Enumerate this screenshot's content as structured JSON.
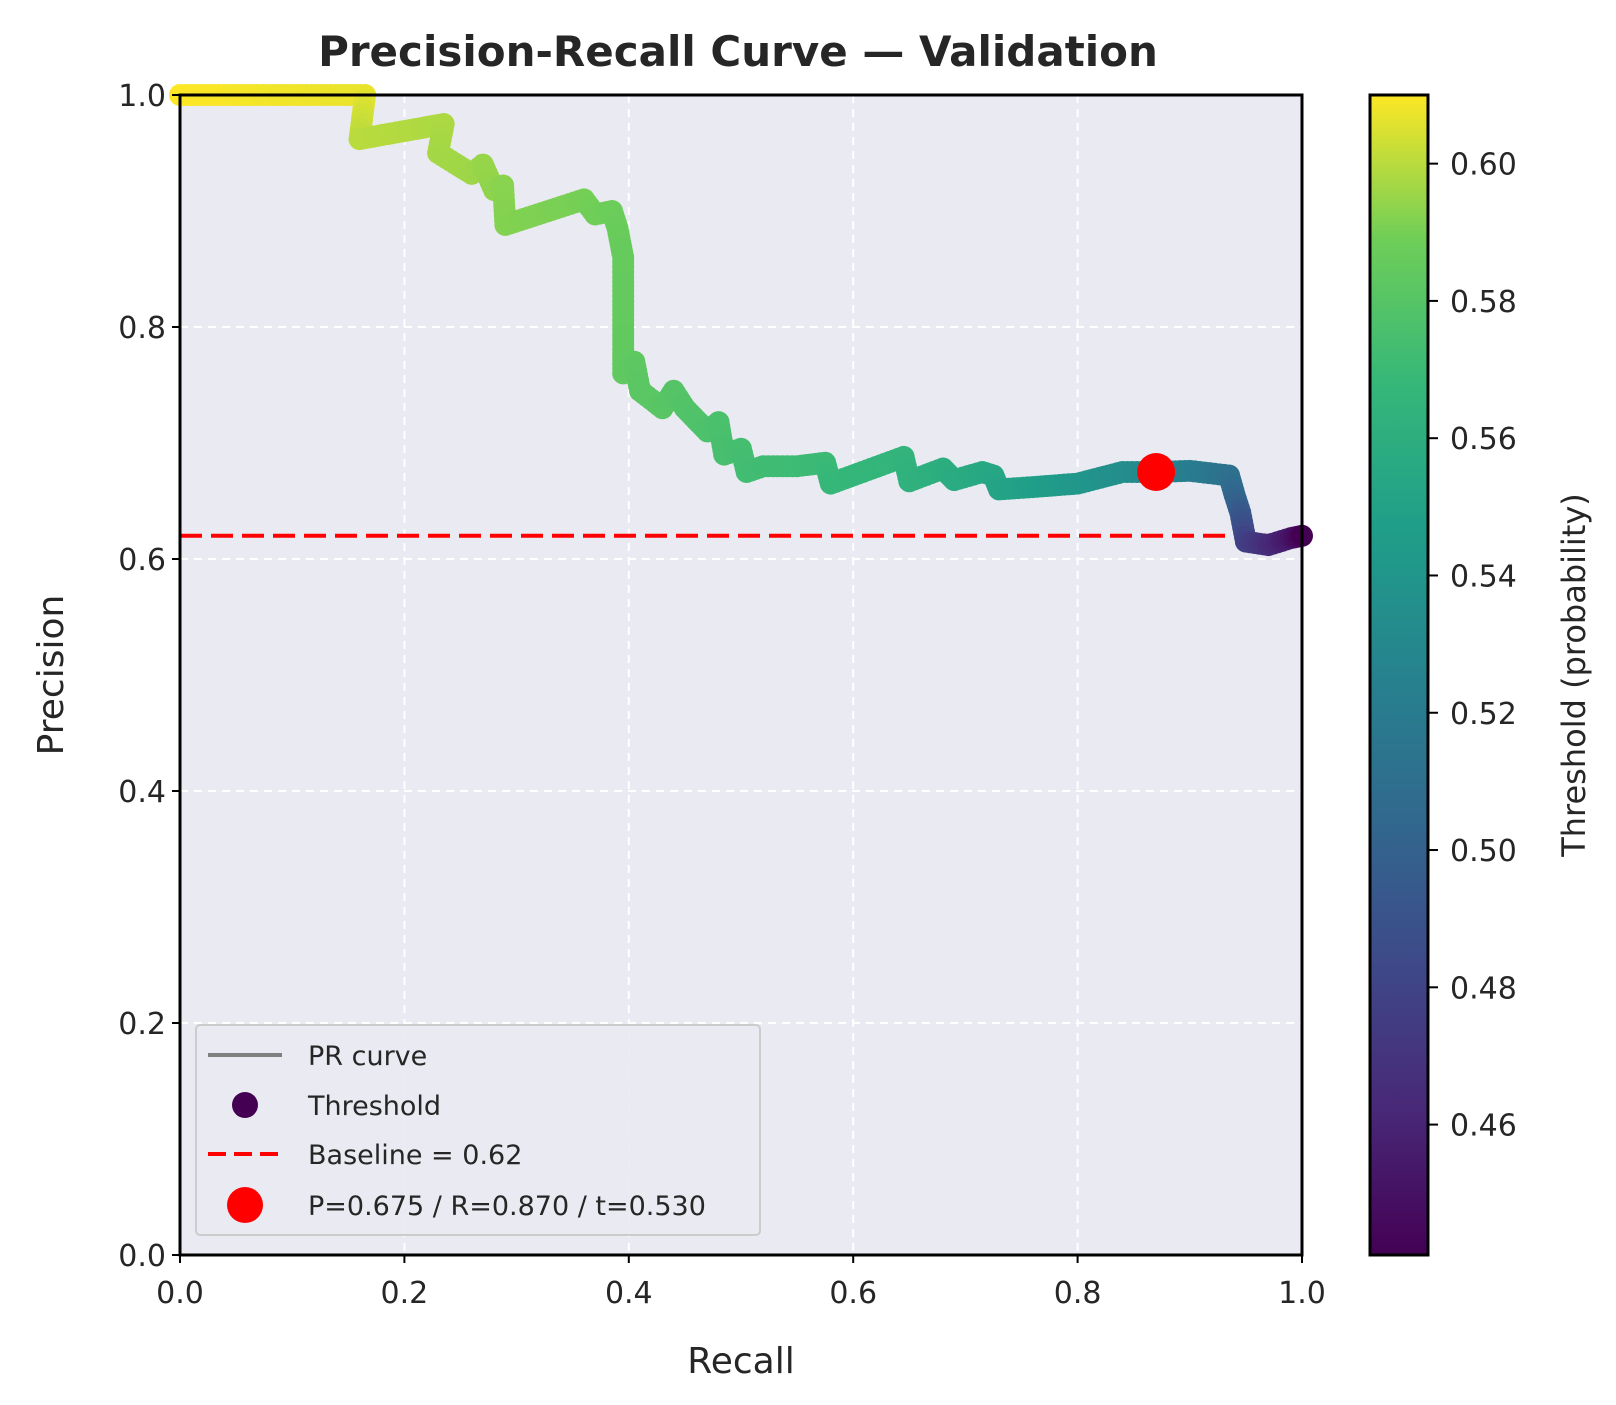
{
  "chart_data": {
    "type": "scatter",
    "title": "Precision-Recall Curve — Validation",
    "xlabel": "Recall",
    "ylabel": "Precision",
    "xlim": [
      0,
      1
    ],
    "ylim": [
      0,
      1
    ],
    "x_ticks": [
      "0.0",
      "0.2",
      "0.4",
      "0.6",
      "0.8",
      "1.0"
    ],
    "y_ticks": [
      "0.0",
      "0.2",
      "0.4",
      "0.6",
      "0.8",
      "1.0"
    ],
    "grid": true,
    "plot_background": "#eaeaf2",
    "legend_position": "lower-left",
    "colorbar": {
      "label": "Threshold (probability)",
      "range": [
        0.441,
        0.61
      ],
      "ticks": [
        "0.46",
        "0.48",
        "0.50",
        "0.52",
        "0.54",
        "0.56",
        "0.58",
        "0.60"
      ],
      "tick_values": [
        0.46,
        0.48,
        0.5,
        0.52,
        0.54,
        0.56,
        0.58,
        0.6
      ],
      "colormap": "viridis"
    },
    "series": [
      {
        "name": "PR curve",
        "kind": "line",
        "color": "#808080",
        "points": [
          [
            0.0,
            1.0
          ],
          [
            0.165,
            1.0
          ],
          [
            0.16,
            0.962
          ],
          [
            0.235,
            0.975
          ],
          [
            0.23,
            0.95
          ],
          [
            0.26,
            0.932
          ],
          [
            0.27,
            0.94
          ],
          [
            0.28,
            0.918
          ],
          [
            0.288,
            0.922
          ],
          [
            0.29,
            0.888
          ],
          [
            0.36,
            0.91
          ],
          [
            0.37,
            0.897
          ],
          [
            0.385,
            0.9
          ],
          [
            0.39,
            0.885
          ],
          [
            0.395,
            0.86
          ],
          [
            0.395,
            0.76
          ],
          [
            0.405,
            0.77
          ],
          [
            0.41,
            0.745
          ],
          [
            0.43,
            0.73
          ],
          [
            0.44,
            0.745
          ],
          [
            0.45,
            0.73
          ],
          [
            0.46,
            0.72
          ],
          [
            0.47,
            0.71
          ],
          [
            0.48,
            0.718
          ],
          [
            0.485,
            0.69
          ],
          [
            0.5,
            0.695
          ],
          [
            0.505,
            0.675
          ],
          [
            0.52,
            0.68
          ],
          [
            0.55,
            0.68
          ],
          [
            0.575,
            0.683
          ],
          [
            0.58,
            0.665
          ],
          [
            0.645,
            0.688
          ],
          [
            0.65,
            0.667
          ],
          [
            0.68,
            0.678
          ],
          [
            0.69,
            0.668
          ],
          [
            0.715,
            0.675
          ],
          [
            0.725,
            0.672
          ],
          [
            0.73,
            0.66
          ],
          [
            0.76,
            0.662
          ],
          [
            0.8,
            0.665
          ],
          [
            0.84,
            0.675
          ],
          [
            0.87,
            0.675
          ],
          [
            0.9,
            0.676
          ],
          [
            0.935,
            0.672
          ],
          [
            0.94,
            0.655
          ],
          [
            0.945,
            0.64
          ],
          [
            0.95,
            0.615
          ],
          [
            0.97,
            0.612
          ],
          [
            0.99,
            0.618
          ],
          [
            1.0,
            0.62
          ]
        ]
      },
      {
        "name": "Threshold",
        "kind": "scatter",
        "points_xyt": [
          [
            0.0,
            1.0,
            0.61
          ],
          [
            0.165,
            1.0,
            0.607
          ],
          [
            0.16,
            0.962,
            0.6
          ],
          [
            0.235,
            0.975,
            0.598
          ],
          [
            0.23,
            0.95,
            0.597
          ],
          [
            0.26,
            0.932,
            0.596
          ],
          [
            0.27,
            0.94,
            0.595
          ],
          [
            0.28,
            0.918,
            0.594
          ],
          [
            0.288,
            0.922,
            0.593
          ],
          [
            0.29,
            0.888,
            0.592
          ],
          [
            0.36,
            0.91,
            0.59
          ],
          [
            0.37,
            0.897,
            0.589
          ],
          [
            0.385,
            0.9,
            0.588
          ],
          [
            0.39,
            0.885,
            0.587
          ],
          [
            0.395,
            0.86,
            0.586
          ],
          [
            0.395,
            0.76,
            0.584
          ],
          [
            0.405,
            0.77,
            0.583
          ],
          [
            0.41,
            0.745,
            0.582
          ],
          [
            0.43,
            0.73,
            0.581
          ],
          [
            0.44,
            0.745,
            0.58
          ],
          [
            0.45,
            0.73,
            0.579
          ],
          [
            0.46,
            0.72,
            0.578
          ],
          [
            0.47,
            0.71,
            0.577
          ],
          [
            0.48,
            0.718,
            0.576
          ],
          [
            0.485,
            0.69,
            0.575
          ],
          [
            0.5,
            0.695,
            0.574
          ],
          [
            0.505,
            0.675,
            0.573
          ],
          [
            0.52,
            0.68,
            0.572
          ],
          [
            0.55,
            0.68,
            0.571
          ],
          [
            0.575,
            0.683,
            0.57
          ],
          [
            0.58,
            0.665,
            0.568
          ],
          [
            0.645,
            0.688,
            0.565
          ],
          [
            0.65,
            0.667,
            0.563
          ],
          [
            0.68,
            0.678,
            0.56
          ],
          [
            0.69,
            0.668,
            0.558
          ],
          [
            0.715,
            0.675,
            0.556
          ],
          [
            0.725,
            0.672,
            0.554
          ],
          [
            0.73,
            0.66,
            0.552
          ],
          [
            0.76,
            0.662,
            0.548
          ],
          [
            0.8,
            0.665,
            0.542
          ],
          [
            0.84,
            0.675,
            0.535
          ],
          [
            0.87,
            0.675,
            0.53
          ],
          [
            0.9,
            0.676,
            0.522
          ],
          [
            0.935,
            0.672,
            0.512
          ],
          [
            0.94,
            0.655,
            0.505
          ],
          [
            0.945,
            0.64,
            0.495
          ],
          [
            0.95,
            0.615,
            0.478
          ],
          [
            0.97,
            0.612,
            0.465
          ],
          [
            0.99,
            0.618,
            0.452
          ],
          [
            1.0,
            0.62,
            0.441
          ]
        ]
      },
      {
        "name": "Baseline = 0.62",
        "kind": "hline",
        "y": 0.62,
        "color": "#ff0000",
        "style": "dashed"
      },
      {
        "name": "P=0.675 / R=0.870 / t=0.530",
        "kind": "marker",
        "x": 0.87,
        "y": 0.675,
        "color": "#ff0000"
      }
    ]
  }
}
